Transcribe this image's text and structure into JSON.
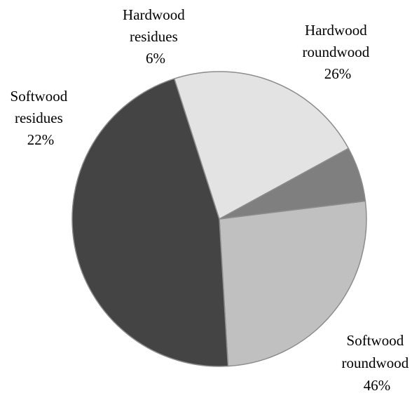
{
  "chart_data": {
    "type": "pie",
    "title": "",
    "slices": [
      {
        "label_lines": [
          "Hardwood",
          "roundwood"
        ],
        "value": 26,
        "value_label": "26%",
        "color": "#c0c0c0"
      },
      {
        "label_lines": [
          "Softwood",
          "roundwood"
        ],
        "value": 46,
        "value_label": "46%",
        "color": "#444444"
      },
      {
        "label_lines": [
          "Softwood",
          "residues"
        ],
        "value": 22,
        "value_label": "22%",
        "color": "#e3e3e3"
      },
      {
        "label_lines": [
          "Hardwood",
          "residues"
        ],
        "value": 6,
        "value_label": "6%",
        "color": "#7f7f7f"
      }
    ],
    "start_angle_deg": -7,
    "direction": "clockwise",
    "legend": "none",
    "slice_border_color": "#8c8c8c"
  }
}
